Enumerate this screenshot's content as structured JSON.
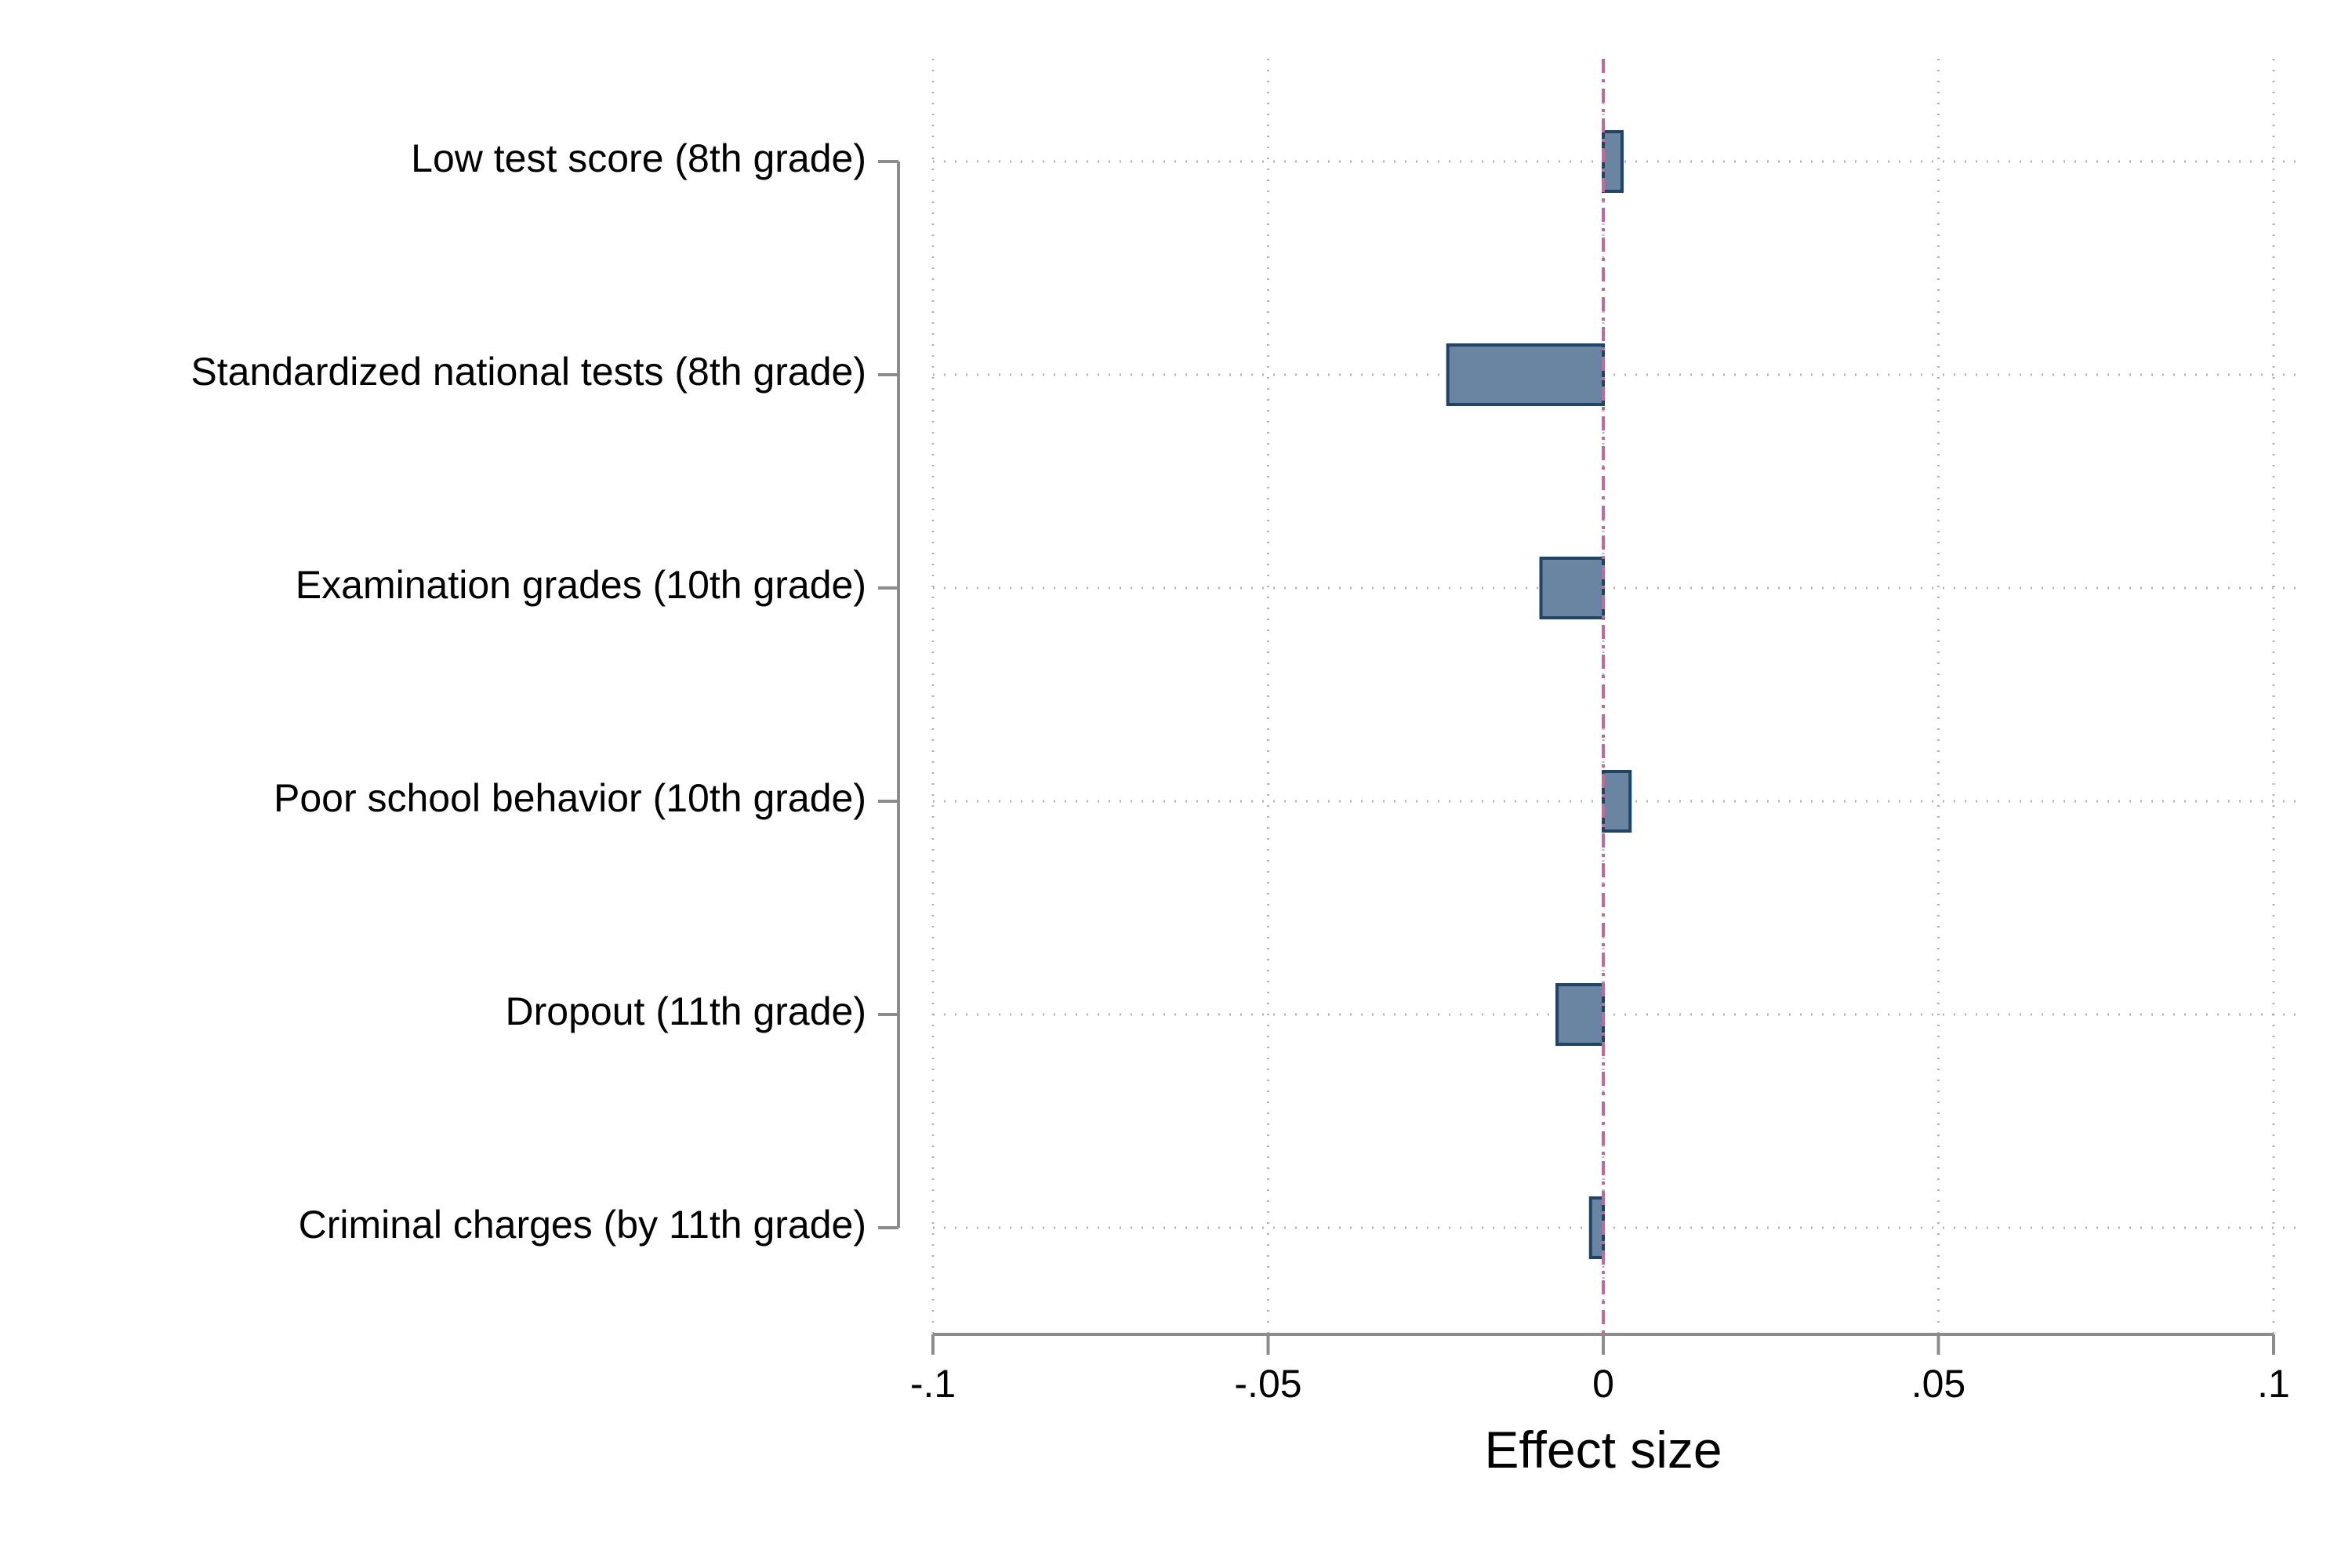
{
  "chart_data": {
    "type": "bar",
    "orientation": "horizontal",
    "categories": [
      "Low test score (8th grade)",
      "Standardized national tests (8th grade)",
      "Examination grades (10th grade)",
      "Poor school behavior (10th grade)",
      "Dropout (11th grade)",
      "Criminal charges (by 11th grade)"
    ],
    "values": [
      0.0028,
      -0.0232,
      -0.0093,
      0.004,
      -0.0069,
      -0.0019
    ],
    "xlabel": "Effect size",
    "ylabel": "",
    "title": "",
    "xlim": [
      -0.1,
      0.1
    ],
    "x_ticks": [
      -0.1,
      -0.05,
      0,
      0.05,
      0.1
    ],
    "x_tick_labels": [
      "-.1",
      "-.05",
      "0",
      ".05",
      ".1"
    ],
    "reference_line": {
      "x": 0,
      "style": "dashed",
      "color": "#c0699a"
    },
    "grid": true,
    "legend": "none",
    "colors": {
      "bar_fill": "#6a85a2",
      "bar_stroke": "#1f4468",
      "axis": "#8c8c8c",
      "grid": "#b4b4b4"
    }
  }
}
